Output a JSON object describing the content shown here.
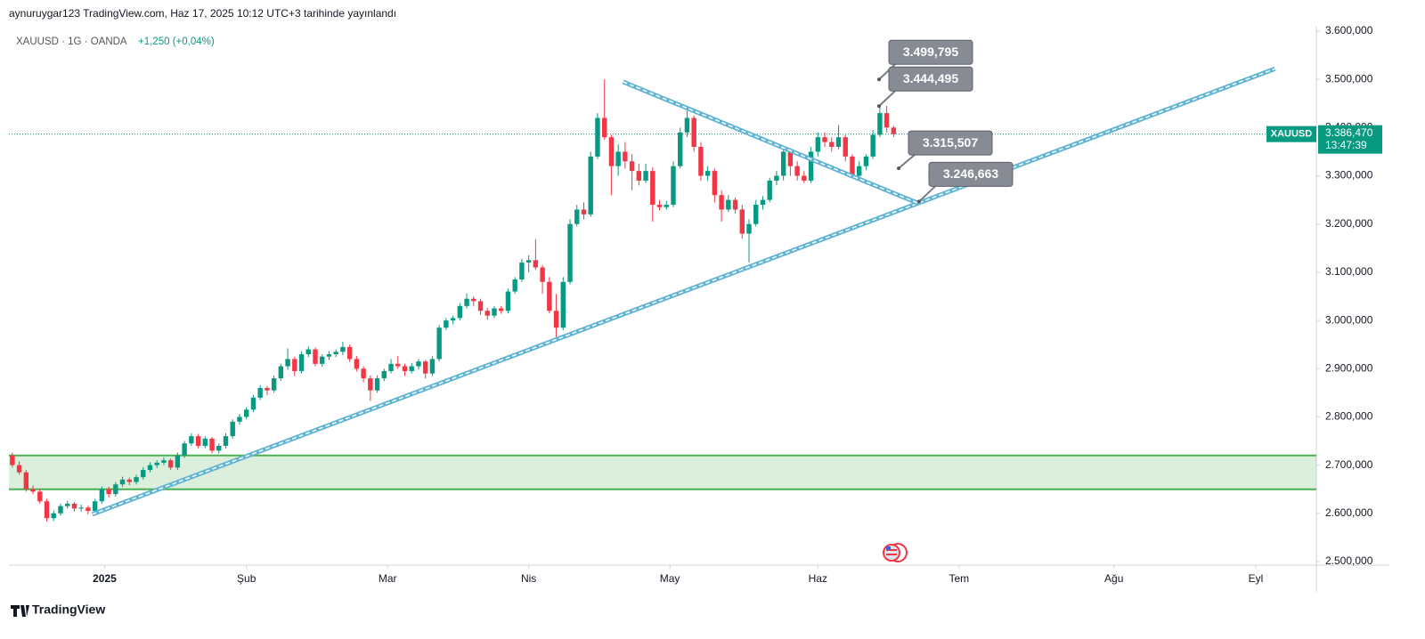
{
  "header": {
    "published": "aynuruygar123 TradingView.com, Haz 17, 2025 10:12 UTC+3 tarihinde yayınlandı",
    "symbol": "XAUUSD · 1G · OANDA",
    "change": "+1,250 (+0,04%)",
    "brand": "TradingView"
  },
  "chart_data": {
    "type": "candlestick",
    "up_color": "#089981",
    "down_color": "#f23645",
    "xlim": [
      -0.5,
      189.4
    ],
    "ylim": [
      2492.6,
      3609.2
    ],
    "xticks": [
      {
        "value": 13.4,
        "label": "2025"
      },
      {
        "value": 34,
        "label": "Şub"
      },
      {
        "value": 54.5,
        "label": "Mar"
      },
      {
        "value": 75,
        "label": "Nis"
      },
      {
        "value": 95.5,
        "label": "May"
      },
      {
        "value": 117,
        "label": "Haz"
      },
      {
        "value": 137.5,
        "label": "Tem"
      },
      {
        "value": 160,
        "label": "Ağu"
      },
      {
        "value": 180.6,
        "label": "Eyl"
      }
    ],
    "yticks": [
      {
        "value": 2500,
        "label": "2.500,000"
      },
      {
        "value": 2600,
        "label": "2.600,000"
      },
      {
        "value": 2700,
        "label": "2.700,000"
      },
      {
        "value": 2800,
        "label": "2.800,000"
      },
      {
        "value": 2900,
        "label": "2.900,000"
      },
      {
        "value": 3000,
        "label": "3.000,000"
      },
      {
        "value": 3100,
        "label": "3.100,000"
      },
      {
        "value": 3200,
        "label": "3.200,000"
      },
      {
        "value": 3300,
        "label": "3.300,000"
      },
      {
        "value": 3400,
        "label": "3.400,000"
      },
      {
        "value": 3500,
        "label": "3.500,000"
      },
      {
        "value": 3600,
        "label": "3.600,000"
      }
    ],
    "ohlc": [
      [
        2720,
        2726,
        2695,
        2700
      ],
      [
        2700,
        2708,
        2680,
        2685
      ],
      [
        2685,
        2690,
        2645,
        2650
      ],
      [
        2650,
        2658,
        2640,
        2645
      ],
      [
        2645,
        2650,
        2620,
        2625
      ],
      [
        2625,
        2630,
        2583,
        2590
      ],
      [
        2590,
        2606,
        2584,
        2600
      ],
      [
        2600,
        2620,
        2595,
        2615
      ],
      [
        2615,
        2626,
        2610,
        2620
      ],
      [
        2620,
        2624,
        2604,
        2610
      ],
      [
        2610,
        2618,
        2604,
        2612
      ],
      [
        2612,
        2616,
        2598,
        2605
      ],
      [
        2605,
        2630,
        2600,
        2625
      ],
      [
        2625,
        2656,
        2620,
        2650
      ],
      [
        2650,
        2655,
        2633,
        2640
      ],
      [
        2640,
        2665,
        2635,
        2660
      ],
      [
        2660,
        2676,
        2655,
        2670
      ],
      [
        2670,
        2674,
        2658,
        2665
      ],
      [
        2665,
        2680,
        2660,
        2675
      ],
      [
        2675,
        2696,
        2670,
        2690
      ],
      [
        2690,
        2706,
        2685,
        2700
      ],
      [
        2700,
        2710,
        2694,
        2705
      ],
      [
        2705,
        2716,
        2700,
        2710
      ],
      [
        2710,
        2714,
        2690,
        2695
      ],
      [
        2695,
        2726,
        2690,
        2720
      ],
      [
        2720,
        2750,
        2715,
        2745
      ],
      [
        2745,
        2766,
        2740,
        2760
      ],
      [
        2760,
        2765,
        2735,
        2740
      ],
      [
        2740,
        2760,
        2735,
        2755
      ],
      [
        2755,
        2758,
        2725,
        2730
      ],
      [
        2730,
        2745,
        2724,
        2740
      ],
      [
        2740,
        2766,
        2735,
        2760
      ],
      [
        2760,
        2795,
        2755,
        2790
      ],
      [
        2790,
        2806,
        2784,
        2800
      ],
      [
        2800,
        2820,
        2795,
        2815
      ],
      [
        2815,
        2846,
        2810,
        2840
      ],
      [
        2840,
        2866,
        2835,
        2860
      ],
      [
        2860,
        2864,
        2845,
        2855
      ],
      [
        2855,
        2886,
        2850,
        2880
      ],
      [
        2880,
        2910,
        2875,
        2905
      ],
      [
        2905,
        2942,
        2898,
        2920
      ],
      [
        2920,
        2925,
        2885,
        2895
      ],
      [
        2895,
        2936,
        2890,
        2930
      ],
      [
        2930,
        2946,
        2924,
        2940
      ],
      [
        2940,
        2944,
        2905,
        2910
      ],
      [
        2910,
        2930,
        2904,
        2925
      ],
      [
        2925,
        2936,
        2918,
        2930
      ],
      [
        2930,
        2940,
        2924,
        2935
      ],
      [
        2935,
        2956,
        2928,
        2945
      ],
      [
        2945,
        2950,
        2914,
        2920
      ],
      [
        2920,
        2926,
        2894,
        2900
      ],
      [
        2900,
        2905,
        2872,
        2880
      ],
      [
        2880,
        2886,
        2833,
        2855
      ],
      [
        2855,
        2886,
        2850,
        2880
      ],
      [
        2880,
        2900,
        2874,
        2895
      ],
      [
        2895,
        2920,
        2890,
        2910
      ],
      [
        2910,
        2926,
        2900,
        2905
      ],
      [
        2905,
        2910,
        2885,
        2895
      ],
      [
        2895,
        2912,
        2890,
        2905
      ],
      [
        2905,
        2920,
        2898,
        2915
      ],
      [
        2915,
        2918,
        2880,
        2890
      ],
      [
        2890,
        2926,
        2885,
        2920
      ],
      [
        2920,
        2990,
        2915,
        2985
      ],
      [
        2985,
        3005,
        2980,
        3000
      ],
      [
        3000,
        3010,
        2992,
        3005
      ],
      [
        3005,
        3036,
        3000,
        3030
      ],
      [
        3030,
        3056,
        3025,
        3045
      ],
      [
        3045,
        3050,
        3030,
        3040
      ],
      [
        3040,
        3045,
        3012,
        3020
      ],
      [
        3020,
        3026,
        3002,
        3010
      ],
      [
        3010,
        3030,
        3005,
        3025
      ],
      [
        3025,
        3030,
        3014,
        3020
      ],
      [
        3020,
        3066,
        3015,
        3060
      ],
      [
        3060,
        3090,
        3055,
        3085
      ],
      [
        3085,
        3128,
        3080,
        3120
      ],
      [
        3120,
        3135,
        3100,
        3125
      ],
      [
        3125,
        3168,
        3105,
        3110
      ],
      [
        3110,
        3115,
        3055,
        3080
      ],
      [
        3080,
        3090,
        3015,
        3020
      ],
      [
        3020,
        3055,
        2957,
        2985
      ],
      [
        2985,
        3090,
        2980,
        3080
      ],
      [
        3080,
        3210,
        3075,
        3200
      ],
      [
        3200,
        3240,
        3195,
        3230
      ],
      [
        3230,
        3245,
        3210,
        3220
      ],
      [
        3220,
        3350,
        3215,
        3340
      ],
      [
        3340,
        3430,
        3335,
        3420
      ],
      [
        3420,
        3500,
        3375,
        3380
      ],
      [
        3380,
        3385,
        3260,
        3320
      ],
      [
        3320,
        3365,
        3300,
        3350
      ],
      [
        3350,
        3370,
        3315,
        3330
      ],
      [
        3330,
        3345,
        3270,
        3310
      ],
      [
        3310,
        3325,
        3280,
        3290
      ],
      [
        3290,
        3325,
        3285,
        3310
      ],
      [
        3310,
        3318,
        3205,
        3240
      ],
      [
        3240,
        3250,
        3228,
        3235
      ],
      [
        3235,
        3248,
        3230,
        3240
      ],
      [
        3240,
        3330,
        3235,
        3320
      ],
      [
        3320,
        3400,
        3315,
        3390
      ],
      [
        3390,
        3435,
        3380,
        3420
      ],
      [
        3420,
        3425,
        3350,
        3360
      ],
      [
        3360,
        3370,
        3290,
        3300
      ],
      [
        3300,
        3320,
        3290,
        3310
      ],
      [
        3310,
        3315,
        3245,
        3260
      ],
      [
        3260,
        3270,
        3205,
        3230
      ],
      [
        3230,
        3260,
        3225,
        3250
      ],
      [
        3250,
        3255,
        3222,
        3230
      ],
      [
        3230,
        3240,
        3170,
        3180
      ],
      [
        3180,
        3210,
        3120,
        3200
      ],
      [
        3200,
        3250,
        3195,
        3240
      ],
      [
        3240,
        3258,
        3230,
        3250
      ],
      [
        3250,
        3296,
        3245,
        3290
      ],
      [
        3290,
        3310,
        3280,
        3300
      ],
      [
        3300,
        3360,
        3290,
        3350
      ],
      [
        3350,
        3355,
        3300,
        3320
      ],
      [
        3320,
        3330,
        3290,
        3300
      ],
      [
        3300,
        3310,
        3285,
        3290
      ],
      [
        3290,
        3360,
        3285,
        3350
      ],
      [
        3350,
        3390,
        3340,
        3380
      ],
      [
        3380,
        3390,
        3360,
        3370
      ],
      [
        3370,
        3380,
        3350,
        3360
      ],
      [
        3360,
        3405,
        3355,
        3380
      ],
      [
        3380,
        3385,
        3330,
        3340
      ],
      [
        3340,
        3345,
        3295,
        3300
      ],
      [
        3300,
        3330,
        3295,
        3320
      ],
      [
        3320,
        3345,
        3312,
        3340
      ],
      [
        3340,
        3395,
        3335,
        3385
      ],
      [
        3385,
        3445,
        3380,
        3430
      ],
      [
        3430,
        3445,
        3390,
        3400
      ],
      [
        3400,
        3404,
        3380,
        3386.47
      ]
    ],
    "zone": {
      "color": "#4caf50",
      "range": [
        2650,
        2720
      ]
    },
    "trendlines": [
      {
        "color": "#5fb3d4",
        "x": [
          11.6,
          183.4
        ],
        "y": [
          2598,
          3522
        ]
      },
      {
        "color": "#5fb3d4",
        "x": [
          88.7,
          131.4
        ],
        "y": [
          3495,
          3244
        ]
      }
    ],
    "annotations": [
      {
        "label": "3.499,795",
        "value": 3499.795
      },
      {
        "label": "3.444,495",
        "value": 3444.495
      },
      {
        "label": "3.315,507",
        "value": 3315.507
      },
      {
        "label": "3.246,663",
        "value": 3246.663
      }
    ],
    "last_price": {
      "symbol": "XAUUSD",
      "value": 3386.47,
      "label": "3.386,470",
      "countdown": "13:47:39"
    }
  }
}
